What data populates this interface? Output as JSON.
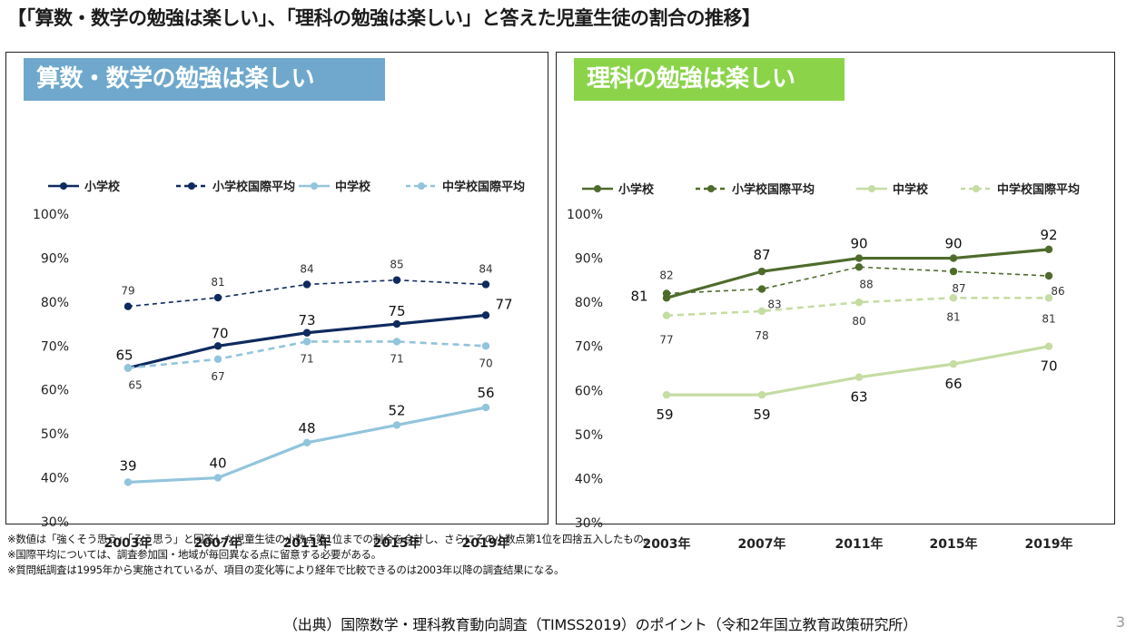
{
  "page_title": "【「算数・数学の勉強は楽しい」、「理科の勉強は楽しい」と答えた児童生徒の割合の推移】",
  "notes": [
    "※数値は「強くそう思う」「そう思う」と回答した児童生徒の小数点第1位までの割合を合計し、さらにその小数点第1位を四捨五入したもの。",
    "※国際平均については、調査参加国・地域が毎回異なる点に留意する必要がある。",
    "※質問紙調査は1995年から実施されているが、項目の変化等により経年で比較できるのは2003年以降の調査結果になる。"
  ],
  "source": "（出典）国際数学・理科教育動向調査（TIMSS2019）のポイント（令和2年国立教育政策研究所）",
  "page_number": "3",
  "chart_data": [
    {
      "type": "line",
      "title": "算数・数学の勉強は楽しい",
      "categories": [
        "2003年",
        "2007年",
        "2011年",
        "2015年",
        "2019年"
      ],
      "y_ticks": [
        "30%",
        "40%",
        "50%",
        "60%",
        "70%",
        "80%",
        "90%",
        "100%"
      ],
      "ylim": [
        30,
        100
      ],
      "grid": false,
      "legend_position": "top",
      "series": [
        {
          "name": "小学校",
          "values": [
            65,
            70,
            73,
            75,
            77
          ],
          "color": "#0f2a5f",
          "dash": "solid"
        },
        {
          "name": "小学校国際平均",
          "values": [
            79,
            81,
            84,
            85,
            84
          ],
          "color": "#0f2a5f",
          "dash": "dashed"
        },
        {
          "name": "中学校",
          "values": [
            39,
            40,
            48,
            52,
            56
          ],
          "color": "#92c4dc",
          "dash": "solid"
        },
        {
          "name": "中学校国際平均",
          "values": [
            65,
            67,
            71,
            71,
            70
          ],
          "color": "#92c4dc",
          "dash": "dashed"
        }
      ]
    },
    {
      "type": "line",
      "title": "理科の勉強は楽しい",
      "categories": [
        "2003年",
        "2007年",
        "2011年",
        "2015年",
        "2019年"
      ],
      "y_ticks": [
        "30%",
        "40%",
        "50%",
        "60%",
        "70%",
        "80%",
        "90%",
        "100%"
      ],
      "ylim": [
        30,
        100
      ],
      "grid": false,
      "legend_position": "top",
      "series": [
        {
          "name": "小学校",
          "values": [
            81,
            87,
            90,
            90,
            92
          ],
          "color": "#4e6b2c",
          "dash": "solid"
        },
        {
          "name": "小学校国際平均",
          "values": [
            82,
            83,
            88,
            87,
            86
          ],
          "color": "#4e6b2c",
          "dash": "dashed"
        },
        {
          "name": "中学校",
          "values": [
            59,
            59,
            63,
            66,
            70
          ],
          "color": "#c5dca3",
          "dash": "solid"
        },
        {
          "name": "中学校国際平均",
          "values": [
            77,
            78,
            80,
            81,
            81
          ],
          "color": "#c5dca3",
          "dash": "dashed"
        }
      ]
    }
  ]
}
